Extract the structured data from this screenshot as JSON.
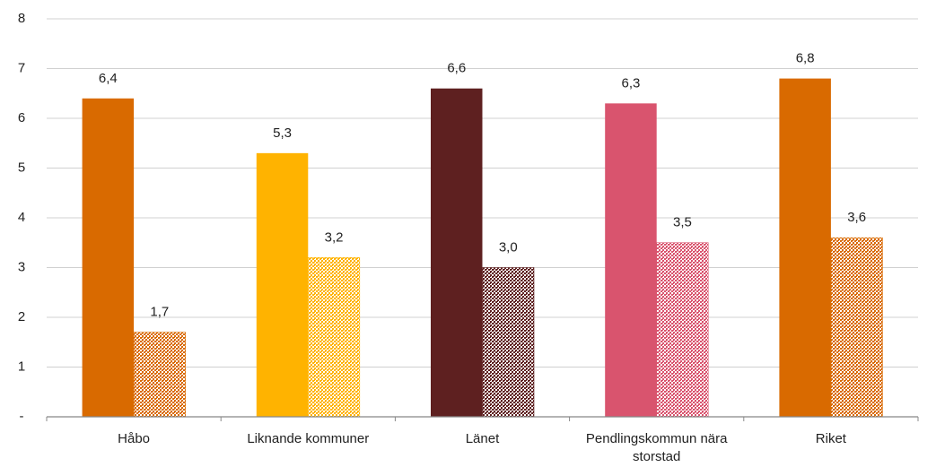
{
  "chart_data": {
    "type": "bar",
    "categories": [
      "Håbo",
      "Liknande kommuner",
      "Länet",
      "Pendlingskommun nära storstad",
      "Riket"
    ],
    "series": [
      {
        "values": [
          6.4,
          5.3,
          6.6,
          6.3,
          6.8
        ],
        "value_labels": [
          "6,4",
          "5,3",
          "6,6",
          "6,3",
          "6,8"
        ],
        "colors": [
          "#d96a00",
          "#ffb300",
          "#5e2020",
          "#d9546e",
          "#d96a00"
        ],
        "pattern": false
      },
      {
        "values": [
          1.7,
          3.2,
          3.0,
          3.5,
          3.6
        ],
        "value_labels": [
          "1,7",
          "3,2",
          "3,0",
          "3,5",
          "3,6"
        ],
        "colors": [
          "#d96a00",
          "#ffb300",
          "#5e2020",
          "#d9546e",
          "#d96a00"
        ],
        "pattern": true
      }
    ],
    "ylim": [
      0,
      8
    ],
    "yticks": [
      {
        "value": 0,
        "label": "-"
      },
      1,
      2,
      3,
      4,
      5,
      6,
      7,
      8
    ],
    "grid": true
  }
}
